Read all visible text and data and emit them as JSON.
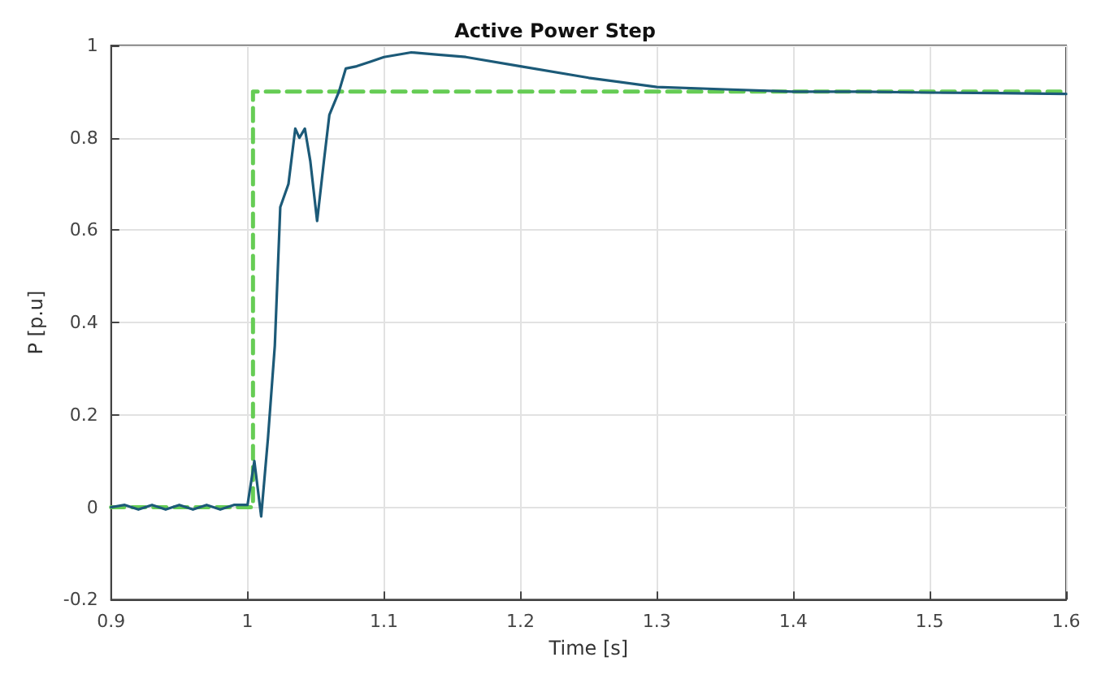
{
  "chart_data": {
    "type": "line",
    "title": "Active Power Step",
    "xlabel": "Time [s]",
    "ylabel": "P [p.u]",
    "xlim": [
      0.9,
      1.6
    ],
    "xticks": [
      0.9,
      1,
      1.1,
      1.2,
      1.3,
      1.4,
      1.5,
      1.6
    ],
    "ylim": [
      -0.2,
      1
    ],
    "yticks": [
      -0.2,
      0,
      0.2,
      0.4,
      0.6,
      0.8,
      1
    ],
    "grid": true,
    "marker": "none",
    "series": [
      {
        "color": "#66cc55",
        "line_style": "dashed",
        "x": [
          0.9,
          1.004,
          1.004,
          1.6
        ],
        "values": [
          0,
          0,
          0.9,
          0.9
        ]
      },
      {
        "color": "#1c5a78",
        "line_style": "solid",
        "x": [
          0.9,
          0.91,
          0.92,
          0.93,
          0.94,
          0.95,
          0.96,
          0.97,
          0.98,
          0.99,
          1.0,
          1.005,
          1.01,
          1.015,
          1.02,
          1.024,
          1.03,
          1.035,
          1.038,
          1.042,
          1.046,
          1.051,
          1.056,
          1.06,
          1.067,
          1.072,
          1.08,
          1.09,
          1.1,
          1.12,
          1.14,
          1.16,
          1.2,
          1.25,
          1.3,
          1.35,
          1.4,
          1.45,
          1.5,
          1.55,
          1.6
        ],
        "values": [
          0,
          0.005,
          -0.005,
          0.005,
          -0.005,
          0.005,
          -0.005,
          0.005,
          -0.005,
          0.005,
          0.005,
          0.1,
          -0.02,
          0.15,
          0.35,
          0.65,
          0.7,
          0.82,
          0.8,
          0.82,
          0.75,
          0.62,
          0.75,
          0.85,
          0.9,
          0.95,
          0.955,
          0.965,
          0.975,
          0.985,
          0.98,
          0.975,
          0.955,
          0.93,
          0.91,
          0.905,
          0.9,
          0.9,
          0.898,
          0.897,
          0.895
        ]
      }
    ]
  }
}
